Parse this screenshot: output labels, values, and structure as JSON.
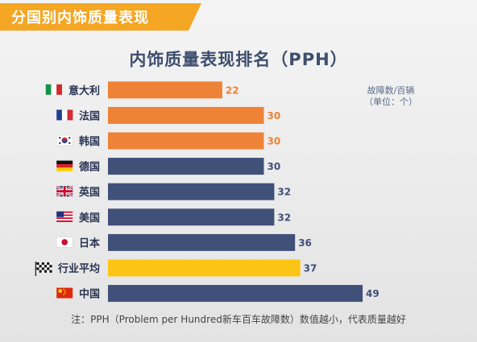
{
  "banner": {
    "text": "分国别内饰质量表现"
  },
  "chart_data": {
    "type": "bar",
    "orientation": "horizontal",
    "title": "内饰质量表现排名（PPH）",
    "unit_label_line1": "故障数/百辆",
    "unit_label_line2": "（单位：个）",
    "categories": [
      "意大利",
      "法国",
      "韩国",
      "德国",
      "英国",
      "美国",
      "日本",
      "行业平均",
      "中国"
    ],
    "values": [
      22,
      30,
      30,
      30,
      32,
      32,
      36,
      37,
      49
    ],
    "bar_colors": [
      "#ee8236",
      "#ee8236",
      "#ee8236",
      "#3f5079",
      "#3f5079",
      "#3f5079",
      "#3f5079",
      "#fcc413",
      "#3f5079"
    ],
    "flag_icons": [
      "flag-italy-icon",
      "flag-france-icon",
      "flag-korea-icon",
      "flag-germany-icon",
      "flag-uk-icon",
      "flag-usa-icon",
      "flag-japan-icon",
      "checkered-flag-icon",
      "flag-china-icon"
    ],
    "xlim": [
      0,
      55
    ],
    "grid": false,
    "legend": "none"
  },
  "footnote": "注：PPH（Problem per Hundred新车百车故障数）数值越小，代表质量越好",
  "colors": {
    "banner": "#f5a623",
    "accent_orange": "#ee8236",
    "navy": "#3f5079",
    "average": "#fcc413",
    "title": "#3e4e6e"
  }
}
